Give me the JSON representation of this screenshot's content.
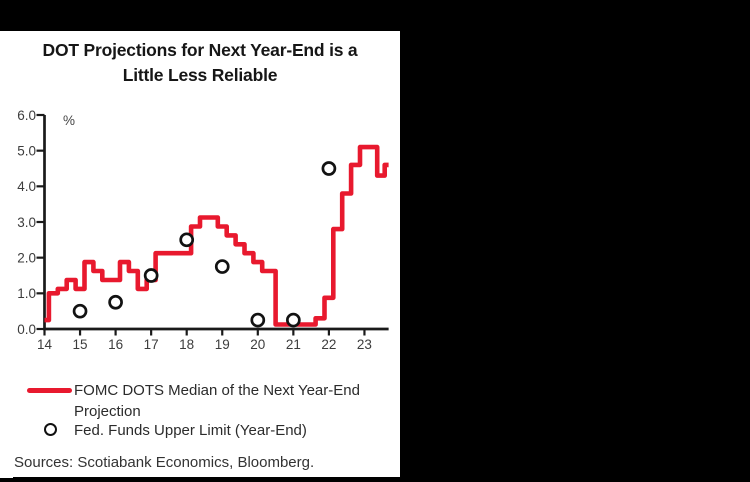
{
  "colors": {
    "surround_bg": "#000000",
    "panel_bg": "#ffffff",
    "line_red": "#e8192e",
    "axis": "#1a1a1a",
    "tick_label": "#3d3d3d",
    "marker": "#121212"
  },
  "title": {
    "line1": "DOT Projections for Next Year-End is a",
    "line2": "Little Less Reliable"
  },
  "chart_data": {
    "type": "line",
    "title": "DOT Projections for Next Year-End is a Little Less Reliable",
    "ylabel": "%",
    "xlabel": "",
    "ylim": [
      0,
      6
    ],
    "ytick_labels": [
      "0.0",
      "1.0",
      "2.0",
      "3.0",
      "4.0",
      "5.0",
      "6.0"
    ],
    "xtick_labels": [
      "14",
      "15",
      "16",
      "17",
      "18",
      "19",
      "20",
      "21",
      "22",
      "23"
    ],
    "x_start": 14,
    "x_end": 23.68,
    "grid": false,
    "legend_position": "below",
    "series": [
      {
        "name": "FOMC DOTS Median of the Next Year-End Projection",
        "type": "step",
        "color": "#e8192e",
        "line_width": 4.6,
        "points": [
          [
            14.0,
            0.25
          ],
          [
            14.125,
            1.0
          ],
          [
            14.375,
            1.125
          ],
          [
            14.625,
            1.375
          ],
          [
            14.875,
            1.125
          ],
          [
            15.125,
            1.875
          ],
          [
            15.375,
            1.625
          ],
          [
            15.625,
            1.375
          ],
          [
            16.125,
            1.875
          ],
          [
            16.375,
            1.625
          ],
          [
            16.625,
            1.125
          ],
          [
            16.875,
            1.375
          ],
          [
            17.125,
            2.125
          ],
          [
            18.125,
            2.875
          ],
          [
            18.375,
            3.125
          ],
          [
            18.875,
            2.875
          ],
          [
            19.125,
            2.625
          ],
          [
            19.375,
            2.375
          ],
          [
            19.625,
            2.125
          ],
          [
            19.875,
            1.875
          ],
          [
            20.125,
            1.625
          ],
          [
            20.5,
            0.125
          ],
          [
            21.625,
            0.3
          ],
          [
            21.875,
            0.875
          ],
          [
            22.125,
            2.8
          ],
          [
            22.375,
            3.8
          ],
          [
            22.625,
            4.6
          ],
          [
            22.875,
            5.1
          ],
          [
            23.36,
            4.3
          ],
          [
            23.57,
            4.6
          ]
        ]
      },
      {
        "name": "Fed. Funds Upper Limit (Year-End)",
        "type": "scatter",
        "marker": "open-circle",
        "color": "#121212",
        "points": [
          [
            15,
            0.5
          ],
          [
            16,
            0.75
          ],
          [
            17,
            1.5
          ],
          [
            18,
            2.5
          ],
          [
            19,
            1.75
          ],
          [
            20,
            0.25
          ],
          [
            21,
            0.25
          ],
          [
            22,
            4.5
          ]
        ]
      }
    ]
  },
  "legend": {
    "items": [
      {
        "label": "FOMC DOTS Median of the Next Year-End Projection",
        "swatch": "line",
        "color": "#e8192e"
      },
      {
        "label": "Fed. Funds Upper Limit (Year-End)",
        "swatch": "open-circle",
        "color": "#121212"
      }
    ]
  },
  "sources": {
    "text": "Sources: Scotiabank Economics, Bloomberg."
  }
}
